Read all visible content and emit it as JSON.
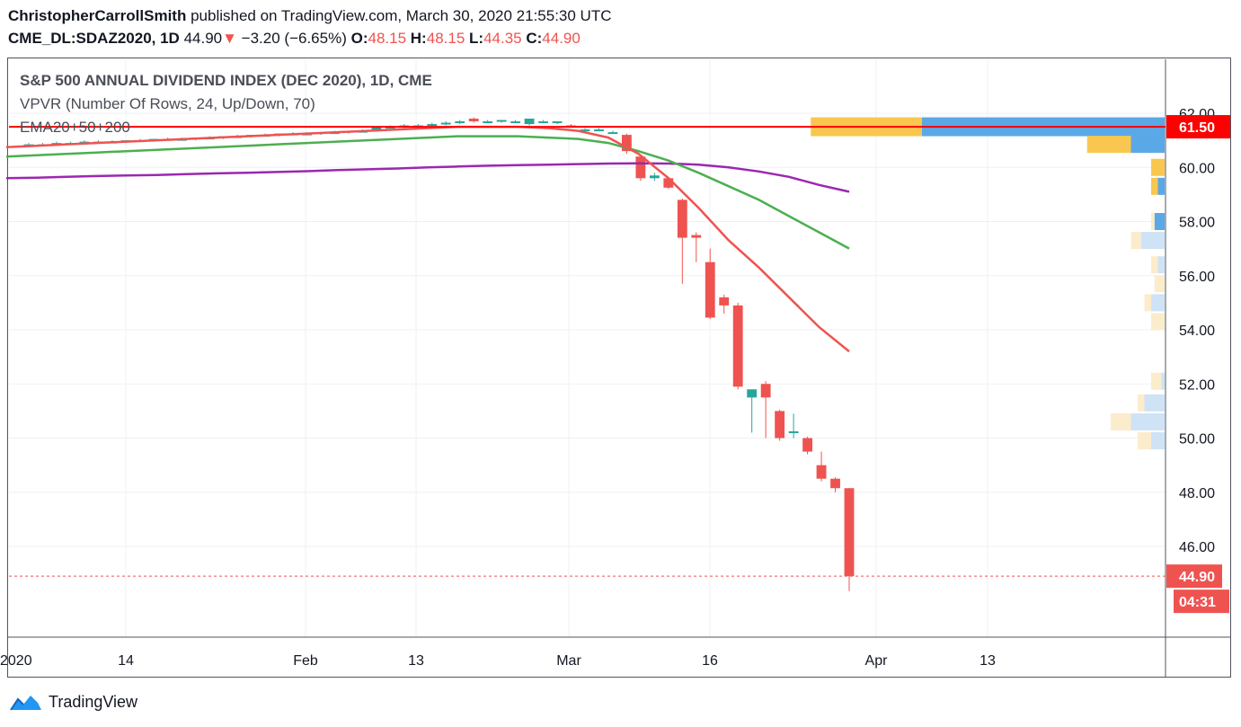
{
  "header": {
    "author": "ChristopherCarrollSmith",
    "published": " published on TradingView.com, March 30, 2020 21:55:30 UTC",
    "symbol": "CME_DL:SDAZ2020, 1D",
    "last": "44.90",
    "change": "−3.20 (−6.65%)",
    "o_label": "O:",
    "o": "48.15",
    "h_label": "H:",
    "h": "48.15",
    "l_label": "L:",
    "l": "44.35",
    "c_label": "C:",
    "c": "44.90"
  },
  "legend": {
    "title": "S&P 500 ANNUAL DIVIDEND INDEX (DEC 2020), 1D, CME",
    "vpvr": "VPVR (Number Of Rows, 24, Up/Down, 70)",
    "ema": "EMA20+50+200"
  },
  "footer": {
    "brand": "TradingView"
  },
  "colors": {
    "up": "#26a69a",
    "down": "#ef5350",
    "ema20": "#ef5350",
    "ema50": "#4caf50",
    "ema200": "#9c27b0",
    "vp_up": "#5ba8e6",
    "vp_down": "#f9c74f",
    "hline": "#ff0000"
  },
  "chart_data": {
    "type": "candlestick",
    "ylim": [
      42.5,
      63.5
    ],
    "yticks": [
      "62.00",
      "60.00",
      "58.00",
      "56.00",
      "54.00",
      "52.00",
      "50.00",
      "48.00",
      "46.00"
    ],
    "xlabels": [
      "2020",
      "14",
      "Feb",
      "13",
      "Mar",
      "16",
      "Apr",
      "13"
    ],
    "price_label": "44.90",
    "countdown": "04:31",
    "hline": {
      "value": 61.5,
      "label": "61.50"
    },
    "candles": [
      {
        "d": "Jan 03",
        "o": 60.85,
        "h": 60.9,
        "l": 60.8,
        "c": 60.85
      },
      {
        "d": "Jan 06",
        "o": 60.85,
        "h": 60.9,
        "l": 60.8,
        "c": 60.85
      },
      {
        "d": "Jan 07",
        "o": 60.85,
        "h": 60.95,
        "l": 60.8,
        "c": 60.9
      },
      {
        "d": "Jan 08",
        "o": 60.9,
        "h": 60.95,
        "l": 60.85,
        "c": 60.9
      },
      {
        "d": "Jan 09",
        "o": 60.9,
        "h": 61.0,
        "l": 60.85,
        "c": 60.95
      },
      {
        "d": "Jan 10",
        "o": 60.95,
        "h": 61.0,
        "l": 60.9,
        "c": 60.95
      },
      {
        "d": "Jan 13",
        "o": 60.95,
        "h": 61.0,
        "l": 60.9,
        "c": 60.95
      },
      {
        "d": "Jan 14",
        "o": 60.95,
        "h": 61.0,
        "l": 60.9,
        "c": 61.0
      },
      {
        "d": "Jan 15",
        "o": 61.0,
        "h": 61.05,
        "l": 60.95,
        "c": 61.0
      },
      {
        "d": "Jan 16",
        "o": 61.0,
        "h": 61.05,
        "l": 60.95,
        "c": 61.05
      },
      {
        "d": "Jan 17",
        "o": 61.05,
        "h": 61.1,
        "l": 61.0,
        "c": 61.05
      },
      {
        "d": "Jan 21",
        "o": 61.05,
        "h": 61.1,
        "l": 61.0,
        "c": 61.05
      },
      {
        "d": "Jan 22",
        "o": 61.05,
        "h": 61.1,
        "l": 61.0,
        "c": 61.1
      },
      {
        "d": "Jan 23",
        "o": 61.1,
        "h": 61.15,
        "l": 61.05,
        "c": 61.1
      },
      {
        "d": "Jan 24",
        "o": 61.1,
        "h": 61.15,
        "l": 61.05,
        "c": 61.15
      },
      {
        "d": "Jan 27",
        "o": 61.15,
        "h": 61.2,
        "l": 61.1,
        "c": 61.15
      },
      {
        "d": "Jan 28",
        "o": 61.15,
        "h": 61.2,
        "l": 61.1,
        "c": 61.2
      },
      {
        "d": "Jan 29",
        "o": 61.2,
        "h": 61.25,
        "l": 61.15,
        "c": 61.2
      },
      {
        "d": "Jan 30",
        "o": 61.2,
        "h": 61.25,
        "l": 61.15,
        "c": 61.25
      },
      {
        "d": "Jan 31",
        "o": 61.25,
        "h": 61.3,
        "l": 61.2,
        "c": 61.25
      },
      {
        "d": "Feb 03",
        "o": 61.25,
        "h": 61.3,
        "l": 61.2,
        "c": 61.25
      },
      {
        "d": "Feb 04",
        "o": 61.25,
        "h": 61.3,
        "l": 61.2,
        "c": 61.3
      },
      {
        "d": "Feb 05",
        "o": 61.3,
        "h": 61.35,
        "l": 61.25,
        "c": 61.3
      },
      {
        "d": "Feb 06",
        "o": 61.3,
        "h": 61.35,
        "l": 61.25,
        "c": 61.35
      },
      {
        "d": "Feb 07",
        "o": 61.35,
        "h": 61.4,
        "l": 61.3,
        "c": 61.35
      },
      {
        "d": "Feb 10",
        "o": 61.4,
        "h": 61.5,
        "l": 61.35,
        "c": 61.5
      },
      {
        "d": "Feb 11",
        "o": 61.5,
        "h": 61.55,
        "l": 61.45,
        "c": 61.5
      },
      {
        "d": "Feb 12",
        "o": 61.5,
        "h": 61.6,
        "l": 61.45,
        "c": 61.55
      },
      {
        "d": "Feb 13",
        "o": 61.55,
        "h": 61.6,
        "l": 61.5,
        "c": 61.55
      },
      {
        "d": "Feb 14",
        "o": 61.55,
        "h": 61.65,
        "l": 61.5,
        "c": 61.6
      },
      {
        "d": "Feb 18",
        "o": 61.6,
        "h": 61.7,
        "l": 61.55,
        "c": 61.65
      },
      {
        "d": "Feb 19",
        "o": 61.65,
        "h": 61.75,
        "l": 61.6,
        "c": 61.7
      },
      {
        "d": "Feb 20",
        "o": 61.8,
        "h": 61.85,
        "l": 61.65,
        "c": 61.7
      },
      {
        "d": "Feb 21",
        "o": 61.7,
        "h": 61.75,
        "l": 61.65,
        "c": 61.7
      },
      {
        "d": "Feb 24",
        "o": 61.7,
        "h": 61.75,
        "l": 61.65,
        "c": 61.75
      },
      {
        "d": "Feb 25",
        "o": 61.7,
        "h": 61.75,
        "l": 61.65,
        "c": 61.7
      },
      {
        "d": "Feb 26",
        "o": 61.6,
        "h": 61.8,
        "l": 61.55,
        "c": 61.8
      },
      {
        "d": "Feb 27",
        "o": 61.7,
        "h": 61.75,
        "l": 61.65,
        "c": 61.7
      },
      {
        "d": "Feb 28",
        "o": 61.65,
        "h": 61.7,
        "l": 61.6,
        "c": 61.7
      },
      {
        "d": "Mar 02",
        "o": 61.55,
        "h": 61.6,
        "l": 61.5,
        "c": 61.5
      },
      {
        "d": "Mar 03",
        "o": 61.4,
        "h": 61.45,
        "l": 61.35,
        "c": 61.4
      },
      {
        "d": "Mar 04",
        "o": 61.4,
        "h": 61.45,
        "l": 61.35,
        "c": 61.4
      },
      {
        "d": "Mar 05",
        "o": 61.3,
        "h": 61.35,
        "l": 61.25,
        "c": 61.3
      },
      {
        "d": "Mar 06",
        "o": 61.2,
        "h": 61.25,
        "l": 60.5,
        "c": 60.6
      },
      {
        "d": "Mar 09",
        "o": 60.4,
        "h": 60.45,
        "l": 59.5,
        "c": 59.6
      },
      {
        "d": "Mar 10",
        "o": 59.6,
        "h": 59.8,
        "l": 59.5,
        "c": 59.7
      },
      {
        "d": "Mar 11",
        "o": 59.6,
        "h": 59.65,
        "l": 59.2,
        "c": 59.25
      },
      {
        "d": "Mar 12",
        "o": 58.8,
        "h": 58.85,
        "l": 55.7,
        "c": 57.4
      },
      {
        "d": "Mar 13",
        "o": 57.5,
        "h": 57.6,
        "l": 56.5,
        "c": 57.4
      },
      {
        "d": "Mar 16",
        "o": 56.5,
        "h": 57.0,
        "l": 54.4,
        "c": 54.45
      },
      {
        "d": "Mar 17",
        "o": 55.2,
        "h": 55.3,
        "l": 54.6,
        "c": 54.9
      },
      {
        "d": "Mar 18",
        "o": 54.9,
        "h": 55.0,
        "l": 51.8,
        "c": 51.9
      },
      {
        "d": "Mar 19",
        "o": 51.5,
        "h": 51.8,
        "l": 50.2,
        "c": 51.8
      },
      {
        "d": "Mar 20",
        "o": 52.0,
        "h": 52.1,
        "l": 50.0,
        "c": 51.5
      },
      {
        "d": "Mar 23",
        "o": 51.0,
        "h": 51.05,
        "l": 49.9,
        "c": 50.0
      },
      {
        "d": "Mar 24",
        "o": 50.2,
        "h": 50.9,
        "l": 50.0,
        "c": 50.25
      },
      {
        "d": "Mar 25",
        "o": 50.0,
        "h": 50.05,
        "l": 49.4,
        "c": 49.5
      },
      {
        "d": "Mar 26",
        "o": 49.0,
        "h": 49.5,
        "l": 48.4,
        "c": 48.5
      },
      {
        "d": "Mar 27",
        "o": 48.5,
        "h": 48.55,
        "l": 48.0,
        "c": 48.15
      },
      {
        "d": "Mar 30",
        "o": 48.15,
        "h": 48.15,
        "l": 44.35,
        "c": 44.9
      }
    ],
    "ema20": [
      60.75,
      60.8,
      60.85,
      60.9,
      60.95,
      61.0,
      61.05,
      61.1,
      61.15,
      61.2,
      61.25,
      61.3,
      61.35,
      61.4,
      61.45,
      61.5,
      61.5,
      61.5,
      61.45,
      61.35,
      61.1,
      60.5,
      59.6,
      58.5,
      57.3,
      56.3,
      55.2,
      54.1,
      53.2
    ],
    "ema50": [
      60.4,
      60.45,
      60.5,
      60.55,
      60.6,
      60.65,
      60.7,
      60.75,
      60.8,
      60.85,
      60.9,
      60.95,
      61.0,
      61.05,
      61.1,
      61.15,
      61.15,
      61.15,
      61.1,
      61.05,
      60.9,
      60.6,
      60.25,
      59.8,
      59.3,
      58.8,
      58.2,
      57.6,
      57.0
    ],
    "ema200": [
      59.6,
      59.62,
      59.65,
      59.68,
      59.7,
      59.72,
      59.75,
      59.78,
      59.8,
      59.83,
      59.86,
      59.9,
      59.93,
      59.96,
      60.0,
      60.03,
      60.06,
      60.08,
      60.1,
      60.12,
      60.14,
      60.15,
      60.14,
      60.1,
      60.0,
      59.85,
      59.65,
      59.35,
      59.1
    ]
  },
  "volume_profile": [
    {
      "price": 61.5,
      "up": 0.72,
      "down": 0.33
    },
    {
      "price": 60.85,
      "up": 0.1,
      "down": 0.13
    },
    {
      "price": 60.0,
      "up": 0.0,
      "down": 0.04
    },
    {
      "price": 59.3,
      "up": 0.02,
      "down": 0.02
    },
    {
      "price": 58.0,
      "up": 0.03,
      "down": 0.01
    },
    {
      "price": 57.3,
      "up": 0.07,
      "down": 0.03
    },
    {
      "price": 56.4,
      "up": 0.02,
      "down": 0.02
    },
    {
      "price": 55.7,
      "up": 0.0,
      "down": 0.03
    },
    {
      "price": 55.0,
      "up": 0.04,
      "down": 0.02
    },
    {
      "price": 54.3,
      "up": 0.0,
      "down": 0.04
    },
    {
      "price": 52.1,
      "up": 0.01,
      "down": 0.03
    },
    {
      "price": 51.3,
      "up": 0.06,
      "down": 0.02
    },
    {
      "price": 50.6,
      "up": 0.1,
      "down": 0.06
    },
    {
      "price": 49.9,
      "up": 0.04,
      "down": 0.04
    }
  ]
}
